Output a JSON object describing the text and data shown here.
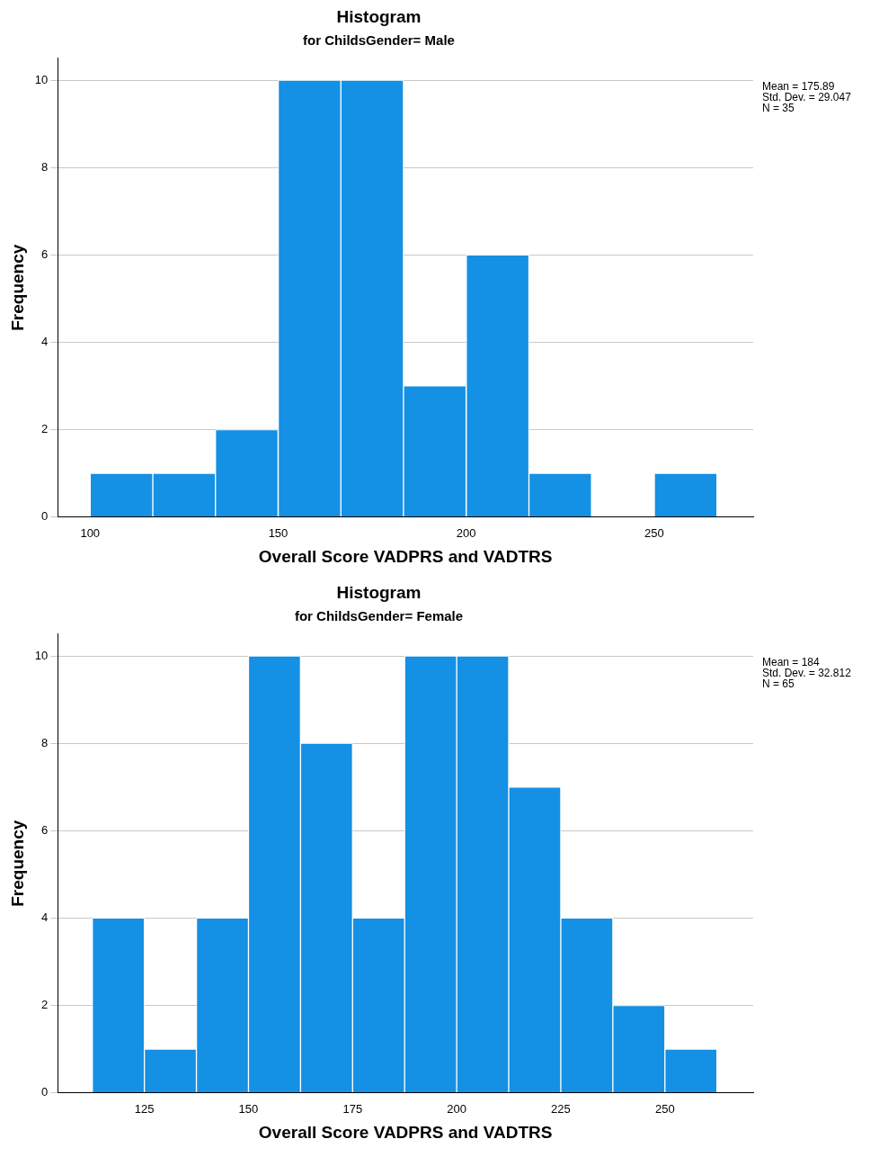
{
  "chart_data": [
    {
      "type": "histogram",
      "title": "Histogram",
      "subtitle": "for ChildsGender= Male",
      "xlabel": "Overall Score VADPRS and VADTRS",
      "ylabel": "Frequency",
      "bins": [
        100,
        116.7,
        133.3,
        150,
        166.7,
        183.3,
        200,
        216.7,
        233.3,
        250,
        266.7
      ],
      "values": [
        1,
        1,
        2,
        10,
        10,
        3,
        6,
        1,
        0,
        1
      ],
      "color": "#1490e4",
      "xlim": [
        91.4,
        276.3
      ],
      "xticks": [
        100,
        150,
        200,
        250
      ],
      "ylim": [
        0,
        10.5
      ],
      "yticks": [
        0,
        2,
        4,
        6,
        8,
        10
      ],
      "grid": "y",
      "annotations": [
        "Mean = 175.89",
        "Std. Dev. = 29.047",
        "N = 35"
      ]
    },
    {
      "type": "histogram",
      "title": "Histogram",
      "subtitle": "for ChildsGender= Female",
      "xlabel": "Overall Score VADPRS and VADTRS",
      "ylabel": "Frequency",
      "bins": [
        112.5,
        125,
        137.5,
        150,
        162.5,
        175,
        187.5,
        200,
        212.5,
        225,
        237.5,
        250,
        262.5
      ],
      "values": [
        4,
        1,
        4,
        10,
        8,
        4,
        10,
        10,
        7,
        4,
        2,
        1
      ],
      "color": "#1490e4",
      "xlim": [
        104.2,
        271.2
      ],
      "xticks": [
        125,
        150,
        175,
        200,
        225,
        250
      ],
      "ylim": [
        0,
        10.5
      ],
      "yticks": [
        0,
        2,
        4,
        6,
        8,
        10
      ],
      "grid": "y",
      "annotations": [
        "Mean = 184",
        "Std. Dev. = 32.812",
        "N = 65"
      ]
    }
  ]
}
